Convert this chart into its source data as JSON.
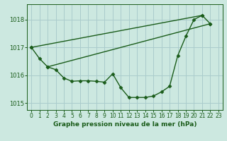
{
  "title": "Graphe pression niveau de la mer (hPa)",
  "background_color": "#cce8e0",
  "grid_color": "#aacccc",
  "line_color": "#1a5c1a",
  "ylim": [
    1014.75,
    1018.55
  ],
  "yticks": [
    1015,
    1016,
    1017,
    1018
  ],
  "xlim": [
    -0.5,
    23.5
  ],
  "xticks": [
    0,
    1,
    2,
    3,
    4,
    5,
    6,
    7,
    8,
    9,
    10,
    11,
    12,
    13,
    14,
    15,
    16,
    17,
    18,
    19,
    20,
    21,
    22,
    23
  ],
  "series_main": {
    "x": [
      0,
      1,
      2,
      3,
      4,
      5,
      6,
      7,
      8,
      9,
      10,
      11,
      12,
      13,
      14,
      15,
      16,
      17,
      18,
      19,
      20,
      21,
      22
    ],
    "y": [
      1017.0,
      1016.6,
      1016.3,
      1016.2,
      1015.9,
      1015.78,
      1015.8,
      1015.8,
      1015.78,
      1015.75,
      1016.05,
      1015.55,
      1015.2,
      1015.2,
      1015.2,
      1015.25,
      1015.4,
      1015.6,
      1016.7,
      1017.4,
      1018.0,
      1018.15,
      1017.85
    ]
  },
  "series_upper": {
    "x": [
      0,
      21
    ],
    "y": [
      1017.0,
      1018.15
    ]
  },
  "series_lower": {
    "x": [
      2,
      22
    ],
    "y": [
      1016.3,
      1017.85
    ]
  },
  "marker": "D",
  "markersize": 2.5,
  "linewidth": 1.0,
  "tick_fontsize": 5.5,
  "xlabel_fontsize": 6.5
}
